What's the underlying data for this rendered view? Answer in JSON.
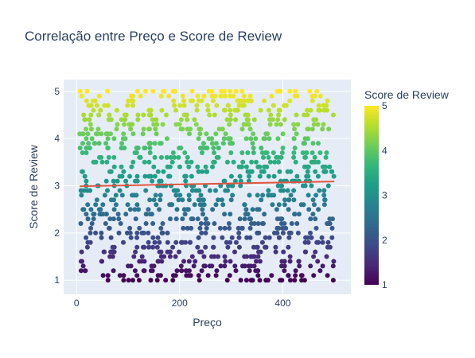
{
  "chart_data": {
    "type": "scatter",
    "title": "Correlação entre Preço e Score de Review",
    "xlabel": "Preço",
    "ylabel": "Score de Review",
    "xlim": [
      -25,
      532
    ],
    "ylim": [
      0.7,
      5.25
    ],
    "x_ticks": [
      0,
      200,
      400
    ],
    "y_ticks": [
      1,
      2,
      3,
      4,
      5
    ],
    "grid": true,
    "colorbar": {
      "title": "Score de Review",
      "range": [
        1,
        5
      ],
      "ticks": [
        1,
        2,
        3,
        4,
        5
      ],
      "colorscale": "viridis"
    },
    "scatter_levels": [
      1.0,
      1.1,
      1.2,
      1.3,
      1.4,
      1.5,
      1.6,
      1.7,
      1.8,
      1.9,
      2.0,
      2.1,
      2.2,
      2.3,
      2.4,
      2.5,
      2.6,
      2.7,
      2.8,
      2.9,
      3.0,
      3.1,
      3.2,
      3.3,
      3.4,
      3.5,
      3.6,
      3.7,
      3.8,
      3.9,
      4.0,
      4.1,
      4.2,
      4.3,
      4.4,
      4.5,
      4.6,
      4.7,
      4.8,
      4.9,
      5.0
    ],
    "x_range_of_points": [
      6,
      500
    ],
    "points_per_level": 25,
    "trendline": {
      "x": [
        6,
        500
      ],
      "y": [
        2.99,
        3.09
      ],
      "color": "#e0553f"
    }
  },
  "colors": {
    "plot_bg": "#e5ecf6",
    "grid": "#ffffff",
    "text": "#2a3f5f"
  }
}
